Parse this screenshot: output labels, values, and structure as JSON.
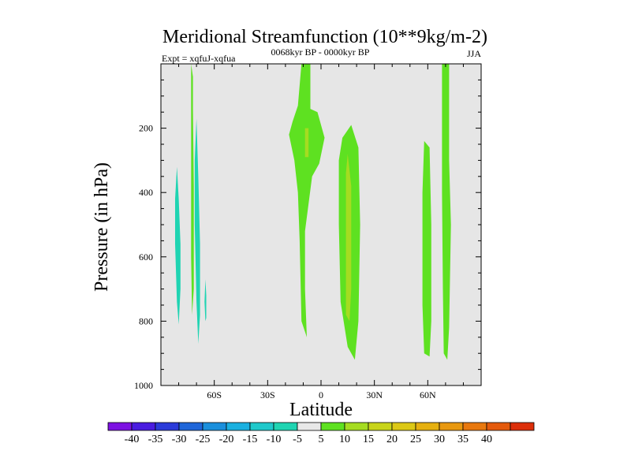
{
  "chart_data": {
    "type": "contour",
    "title": "Meridional Streamfunction (10**9kg/m-2)",
    "left_label": "Expt = xqfuJ-xqfua",
    "center_label": "0068kyr BP - 0000kyr BP",
    "right_label": "JJA",
    "xlabel": "Latitude",
    "ylabel": "Pressure (in hPa)",
    "xlim": [
      -90,
      90
    ],
    "ylim": [
      1000,
      0
    ],
    "x_ticks": [
      {
        "value": -60,
        "label": "60S"
      },
      {
        "value": -30,
        "label": "30S"
      },
      {
        "value": 0,
        "label": "0"
      },
      {
        "value": 30,
        "label": "30N"
      },
      {
        "value": 60,
        "label": "60N"
      }
    ],
    "y_ticks": [
      {
        "value": 200,
        "label": "200"
      },
      {
        "value": 400,
        "label": "400"
      },
      {
        "value": 600,
        "label": "600"
      },
      {
        "value": 800,
        "label": "800"
      },
      {
        "value": 1000,
        "label": "1000"
      }
    ],
    "background_color": "#e6e6e6",
    "regions": [
      {
        "name": "region-south-neg-1",
        "level": "-10..-5",
        "color": "#1fd4b2",
        "points": [
          [
            -81,
            320
          ],
          [
            -80,
            420
          ],
          [
            -79,
            560
          ],
          [
            -79,
            700
          ],
          [
            -80,
            810
          ],
          [
            -81,
            740
          ],
          [
            -82,
            560
          ],
          [
            -82,
            420
          ]
        ]
      },
      {
        "name": "region-south-neg-2",
        "level": "-10..-5",
        "color": "#1fd4b2",
        "points": [
          [
            -70,
            170
          ],
          [
            -69,
            350
          ],
          [
            -68,
            560
          ],
          [
            -68,
            780
          ],
          [
            -69,
            870
          ],
          [
            -70,
            740
          ],
          [
            -71,
            500
          ],
          [
            -71,
            300
          ]
        ]
      },
      {
        "name": "region-south-neg-3",
        "level": "-10..-5",
        "color": "#1fd4b2",
        "points": [
          [
            -65,
            670
          ],
          [
            -64.5,
            720
          ],
          [
            -64.5,
            790
          ],
          [
            -65,
            800
          ],
          [
            -65.5,
            740
          ]
        ]
      },
      {
        "name": "region-south-pos",
        "level": "5..10",
        "color": "#5ee121",
        "points": [
          [
            -73,
            0
          ],
          [
            -72,
            40
          ],
          [
            -72,
            140
          ],
          [
            -71.5,
            380
          ],
          [
            -71.5,
            700
          ],
          [
            -72.5,
            780
          ],
          [
            -73,
            600
          ],
          [
            -73,
            150
          ]
        ]
      },
      {
        "name": "region-eq-green",
        "level": "5..10",
        "color": "#5ee121",
        "points": [
          [
            -11,
            0
          ],
          [
            -6,
            0
          ],
          [
            -6,
            140
          ],
          [
            -2,
            150
          ],
          [
            2,
            230
          ],
          [
            -1,
            310
          ],
          [
            -5,
            350
          ],
          [
            -9,
            520
          ],
          [
            -9,
            700
          ],
          [
            -8,
            850
          ],
          [
            -11,
            800
          ],
          [
            -12,
            550
          ],
          [
            -13,
            400
          ],
          [
            -15,
            300
          ],
          [
            -18,
            220
          ],
          [
            -16,
            180
          ],
          [
            -13,
            130
          ]
        ]
      },
      {
        "name": "region-eq-yellow",
        "level": "10..15",
        "color": "#a5dc21",
        "points": [
          [
            -9,
            200
          ],
          [
            -7,
            200
          ],
          [
            -7,
            290
          ],
          [
            -9,
            290
          ]
        ]
      },
      {
        "name": "region-15n-green",
        "level": "5..10",
        "color": "#5ee121",
        "points": [
          [
            12,
            230
          ],
          [
            17,
            190
          ],
          [
            21,
            260
          ],
          [
            22,
            500
          ],
          [
            21,
            800
          ],
          [
            19,
            920
          ],
          [
            15,
            880
          ],
          [
            11,
            740
          ],
          [
            10,
            500
          ],
          [
            10,
            300
          ]
        ]
      },
      {
        "name": "region-15n-yellow",
        "level": "10..15",
        "color": "#a5dc21",
        "points": [
          [
            15,
            280
          ],
          [
            17,
            380
          ],
          [
            17,
            700
          ],
          [
            16,
            800
          ],
          [
            14,
            780
          ],
          [
            14,
            500
          ],
          [
            14,
            340
          ]
        ]
      },
      {
        "name": "region-60n",
        "level": "5..10",
        "color": "#5ee121",
        "points": [
          [
            58,
            240
          ],
          [
            61,
            260
          ],
          [
            62,
            500
          ],
          [
            62,
            800
          ],
          [
            61,
            910
          ],
          [
            58,
            900
          ],
          [
            57,
            750
          ],
          [
            57,
            400
          ]
        ]
      },
      {
        "name": "region-70n",
        "level": "5..10",
        "color": "#5ee121",
        "points": [
          [
            68,
            0
          ],
          [
            72,
            0
          ],
          [
            72,
            300
          ],
          [
            73,
            500
          ],
          [
            72,
            820
          ],
          [
            71,
            920
          ],
          [
            69,
            900
          ],
          [
            68.5,
            700
          ],
          [
            68,
            400
          ],
          [
            68,
            150
          ]
        ]
      }
    ],
    "colorbar": {
      "colors": [
        "#7d12e2",
        "#4a1ce0",
        "#2b3bd9",
        "#1f66d9",
        "#1a8fdc",
        "#1ab0e0",
        "#1fc9cb",
        "#1fd4b2",
        "#e8e8e8",
        "#5ee121",
        "#a5dc21",
        "#c8d41a",
        "#dcc815",
        "#e6b010",
        "#e89810",
        "#e8780e",
        "#e45a0c",
        "#dc2f0a"
      ],
      "labels": [
        "-40",
        "-35",
        "-30",
        "-25",
        "-20",
        "-15",
        "-10",
        "-5",
        "5",
        "10",
        "15",
        "20",
        "25",
        "30",
        "35",
        "40"
      ]
    }
  }
}
